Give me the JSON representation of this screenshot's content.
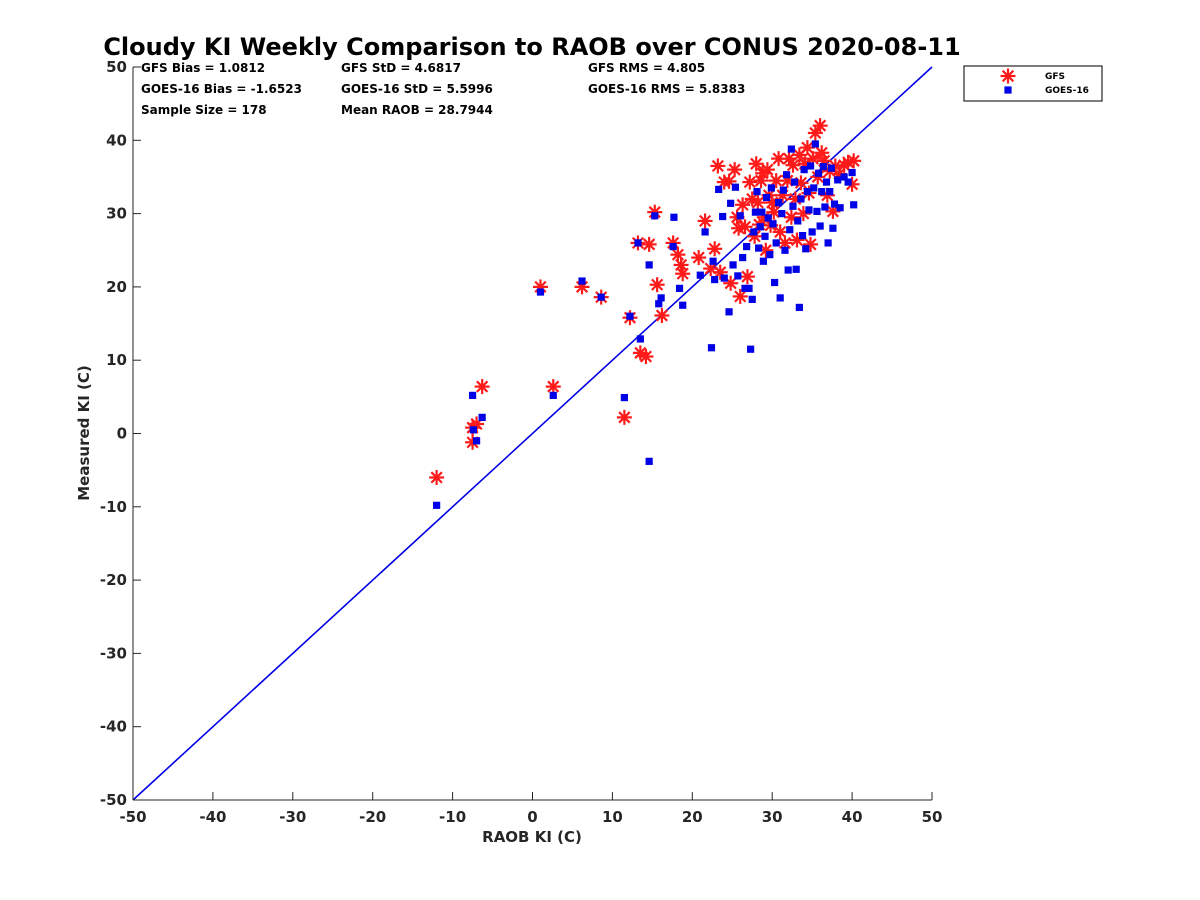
{
  "chart_data": {
    "type": "scatter",
    "title": "Cloudy KI Weekly Comparison to RAOB over CONUS 2020-08-11",
    "xlabel": "RAOB KI (C)",
    "ylabel": "Measured KI (C)",
    "xlim": [
      -50,
      50
    ],
    "ylim": [
      -50,
      50
    ],
    "xticks": [
      -50,
      -40,
      -30,
      -20,
      -10,
      0,
      10,
      20,
      30,
      40,
      50
    ],
    "yticks": [
      -50,
      -40,
      -30,
      -20,
      -10,
      0,
      10,
      20,
      30,
      40,
      50
    ],
    "grid": false,
    "legend_placement": "outside-top-right",
    "reference_line": {
      "type": "one-to-one",
      "color": "#0000e6"
    },
    "stats": [
      {
        "text": "GFS Bias = 1.0812",
        "col": 0,
        "row": 0
      },
      {
        "text": "GOES-16 Bias = -1.6523",
        "col": 0,
        "row": 1
      },
      {
        "text": "Sample Size = 178",
        "col": 0,
        "row": 2
      },
      {
        "text": "GFS StD = 4.6817",
        "col": 1,
        "row": 0
      },
      {
        "text": "GOES-16 StD = 5.5996",
        "col": 1,
        "row": 1
      },
      {
        "text": "Mean RAOB = 28.7944",
        "col": 1,
        "row": 2
      },
      {
        "text": "GFS RMS = 4.805",
        "col": 2,
        "row": 0
      },
      {
        "text": "GOES-16 RMS = 5.8383",
        "col": 2,
        "row": 1
      }
    ],
    "series": [
      {
        "name": "GFS",
        "marker": "asterisk",
        "color": "#ff1a1a",
        "points": [
          [
            -12,
            -6
          ],
          [
            -7.5,
            -1.2
          ],
          [
            -7.5,
            0.8
          ],
          [
            -7,
            1.3
          ],
          [
            -6.3,
            6.4
          ],
          [
            1,
            20
          ],
          [
            2.6,
            6.4
          ],
          [
            6.2,
            20
          ],
          [
            8.6,
            18.6
          ],
          [
            11.5,
            2.2
          ],
          [
            12.2,
            15.8
          ],
          [
            13.2,
            26
          ],
          [
            13.5,
            11
          ],
          [
            14.2,
            10.5
          ],
          [
            14.6,
            25.8
          ],
          [
            15.3,
            30.2
          ],
          [
            15.6,
            20.3
          ],
          [
            16.2,
            16.1
          ],
          [
            17.6,
            26
          ],
          [
            18.2,
            24.4
          ],
          [
            18.6,
            23
          ],
          [
            18.8,
            21.8
          ],
          [
            20.8,
            24
          ],
          [
            21.6,
            29
          ],
          [
            22.3,
            22.5
          ],
          [
            22.8,
            25.2
          ],
          [
            23.2,
            36.5
          ],
          [
            23.5,
            22
          ],
          [
            24,
            34.3
          ],
          [
            24.6,
            34.4
          ],
          [
            24.8,
            20.5
          ],
          [
            25.3,
            36
          ],
          [
            25.6,
            29.5
          ],
          [
            25.8,
            28
          ],
          [
            26,
            18.7
          ],
          [
            26.3,
            31.2
          ],
          [
            26.6,
            28.2
          ],
          [
            26.9,
            21.4
          ],
          [
            27.2,
            34.3
          ],
          [
            27.5,
            32
          ],
          [
            27.8,
            26.9
          ],
          [
            28,
            36.8
          ],
          [
            28.2,
            31.5
          ],
          [
            28.4,
            28.5
          ],
          [
            28.6,
            34.5
          ],
          [
            28.8,
            35.5
          ],
          [
            29,
            29.5
          ],
          [
            29.2,
            25
          ],
          [
            29.4,
            36
          ],
          [
            29.6,
            32.5
          ],
          [
            29.8,
            28.4
          ],
          [
            30,
            31.5
          ],
          [
            30.2,
            30.2
          ],
          [
            30.5,
            34.5
          ],
          [
            30.8,
            37.5
          ],
          [
            31,
            27.5
          ],
          [
            31.3,
            32.5
          ],
          [
            31.6,
            26
          ],
          [
            31.9,
            34.5
          ],
          [
            32.1,
            37.5
          ],
          [
            32.4,
            29.5
          ],
          [
            32.6,
            36.6
          ],
          [
            32.9,
            32
          ],
          [
            33.1,
            26.4
          ],
          [
            33.4,
            38
          ],
          [
            33.6,
            34.2
          ],
          [
            33.9,
            30
          ],
          [
            34.1,
            36.8
          ],
          [
            34.4,
            39
          ],
          [
            34.6,
            32.8
          ],
          [
            34.8,
            25.8
          ],
          [
            35.1,
            37.5
          ],
          [
            35.4,
            41
          ],
          [
            35.7,
            35
          ],
          [
            36,
            42
          ],
          [
            36.2,
            38.3
          ],
          [
            36.5,
            37.2
          ],
          [
            36.9,
            32.5
          ],
          [
            37.2,
            35.8
          ],
          [
            37.6,
            30.3
          ],
          [
            37.9,
            36.5
          ],
          [
            38.4,
            35.4
          ],
          [
            39,
            36.6
          ],
          [
            39.5,
            37
          ],
          [
            40,
            34
          ],
          [
            40.2,
            37.2
          ]
        ]
      },
      {
        "name": "GOES-16",
        "marker": "square",
        "color": "#0000e6",
        "points": [
          [
            -12,
            -9.8
          ],
          [
            -7.5,
            5.2
          ],
          [
            -7.4,
            0.5
          ],
          [
            -7,
            -1
          ],
          [
            -6.3,
            2.2
          ],
          [
            1,
            19.3
          ],
          [
            2.6,
            5.2
          ],
          [
            6.2,
            20.8
          ],
          [
            8.6,
            18.6
          ],
          [
            11.5,
            4.9
          ],
          [
            12.2,
            16
          ],
          [
            13.2,
            26
          ],
          [
            13.5,
            12.9
          ],
          [
            14.6,
            -3.8
          ],
          [
            14.6,
            23
          ],
          [
            15.3,
            29.7
          ],
          [
            15.8,
            17.7
          ],
          [
            16.1,
            18.5
          ],
          [
            17.6,
            25.5
          ],
          [
            17.7,
            29.5
          ],
          [
            18.4,
            19.8
          ],
          [
            18.8,
            17.5
          ],
          [
            21,
            21.6
          ],
          [
            21.6,
            27.5
          ],
          [
            22.4,
            11.7
          ],
          [
            22.6,
            23.5
          ],
          [
            22.8,
            21
          ],
          [
            23.3,
            33.3
          ],
          [
            23.8,
            29.6
          ],
          [
            24,
            21.2
          ],
          [
            24.6,
            16.6
          ],
          [
            24.8,
            31.4
          ],
          [
            25.1,
            23
          ],
          [
            25.4,
            33.6
          ],
          [
            25.7,
            21.5
          ],
          [
            26,
            29.7
          ],
          [
            26.3,
            24
          ],
          [
            26.6,
            19.8
          ],
          [
            26.8,
            25.5
          ],
          [
            27.1,
            19.8
          ],
          [
            27.3,
            11.5
          ],
          [
            27.5,
            18.3
          ],
          [
            27.7,
            27.5
          ],
          [
            27.9,
            30.2
          ],
          [
            28.1,
            33
          ],
          [
            28.3,
            25.3
          ],
          [
            28.5,
            28.2
          ],
          [
            28.7,
            30.2
          ],
          [
            28.9,
            23.5
          ],
          [
            29.1,
            26.9
          ],
          [
            29.3,
            32.2
          ],
          [
            29.5,
            29.4
          ],
          [
            29.7,
            24.4
          ],
          [
            29.9,
            33.5
          ],
          [
            30.1,
            28.6
          ],
          [
            30.3,
            20.6
          ],
          [
            30.5,
            26
          ],
          [
            30.8,
            31.5
          ],
          [
            31,
            18.5
          ],
          [
            31.2,
            30
          ],
          [
            31.4,
            33.2
          ],
          [
            31.6,
            25
          ],
          [
            31.8,
            35.3
          ],
          [
            32,
            22.3
          ],
          [
            32.2,
            27.8
          ],
          [
            32.4,
            38.8
          ],
          [
            32.6,
            31
          ],
          [
            32.8,
            34.3
          ],
          [
            33,
            22.4
          ],
          [
            33.2,
            29
          ],
          [
            33.4,
            17.2
          ],
          [
            33.6,
            32
          ],
          [
            33.8,
            27
          ],
          [
            34,
            36
          ],
          [
            34.2,
            25.2
          ],
          [
            34.4,
            33
          ],
          [
            34.6,
            30.5
          ],
          [
            34.8,
            36.5
          ],
          [
            35,
            27.5
          ],
          [
            35.2,
            33.5
          ],
          [
            35.4,
            39.5
          ],
          [
            35.6,
            30.3
          ],
          [
            35.8,
            35.5
          ],
          [
            36,
            28.3
          ],
          [
            36.2,
            33
          ],
          [
            36.4,
            36.4
          ],
          [
            36.6,
            30.9
          ],
          [
            36.8,
            34.3
          ],
          [
            37,
            26
          ],
          [
            37.2,
            33
          ],
          [
            37.4,
            36.2
          ],
          [
            37.6,
            28
          ],
          [
            37.8,
            31.3
          ],
          [
            38.2,
            34.6
          ],
          [
            38.5,
            30.8
          ],
          [
            39,
            35
          ],
          [
            39.5,
            34.3
          ],
          [
            40,
            35.6
          ],
          [
            40.2,
            31.2
          ]
        ]
      }
    ]
  }
}
